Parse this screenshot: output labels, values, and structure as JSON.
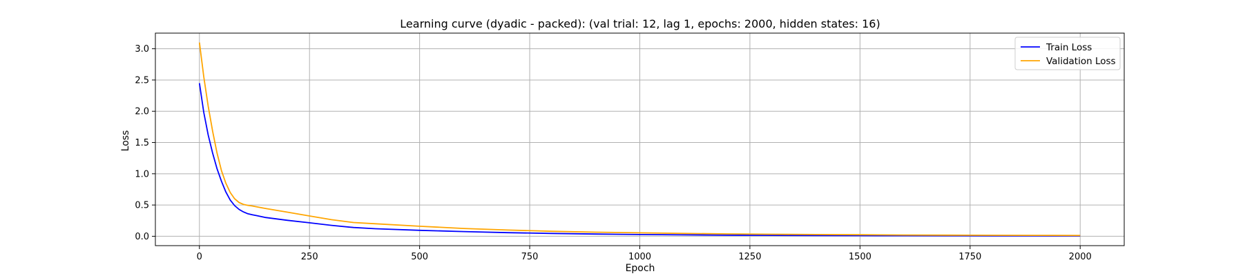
{
  "chart_data": {
    "type": "line",
    "title": "Learning curve (dyadic - packed): (val trial: 12, lag 1, epochs: 2000, hidden states: 16)",
    "xlabel": "Epoch",
    "ylabel": "Loss",
    "xlim": [
      -100,
      2100
    ],
    "ylim": [
      -0.15,
      3.25
    ],
    "xticks": [
      0,
      250,
      500,
      750,
      1000,
      1250,
      1500,
      1750,
      2000
    ],
    "yticks": [
      0.0,
      0.5,
      1.0,
      1.5,
      2.0,
      2.5,
      3.0
    ],
    "xtick_labels": [
      "0",
      "250",
      "500",
      "750",
      "1000",
      "1250",
      "1500",
      "1750",
      "2000"
    ],
    "ytick_labels": [
      "0.0",
      "0.5",
      "1.0",
      "1.5",
      "2.0",
      "2.5",
      "3.0"
    ],
    "grid": true,
    "legend_position": "top-right",
    "series": [
      {
        "name": "Train Loss",
        "color": "#0000ff",
        "x": [
          0,
          10,
          20,
          30,
          40,
          50,
          60,
          70,
          80,
          90,
          100,
          110,
          120,
          130,
          150,
          200,
          250,
          300,
          350,
          400,
          500,
          600,
          700,
          800,
          900,
          1000,
          1100,
          1200,
          1300,
          1400,
          1500,
          1600,
          1700,
          1800,
          1900,
          2000
        ],
        "y": [
          2.45,
          1.98,
          1.62,
          1.33,
          1.08,
          0.88,
          0.71,
          0.58,
          0.49,
          0.43,
          0.39,
          0.36,
          0.345,
          0.33,
          0.3,
          0.255,
          0.215,
          0.175,
          0.14,
          0.12,
          0.095,
          0.075,
          0.058,
          0.045,
          0.035,
          0.028,
          0.022,
          0.018,
          0.015,
          0.012,
          0.01,
          0.009,
          0.008,
          0.007,
          0.006,
          0.005
        ]
      },
      {
        "name": "Validation Loss",
        "color": "#ffa500",
        "x": [
          0,
          10,
          20,
          30,
          40,
          50,
          60,
          70,
          80,
          90,
          100,
          110,
          120,
          130,
          150,
          200,
          250,
          300,
          350,
          400,
          500,
          600,
          700,
          800,
          900,
          1000,
          1100,
          1200,
          1300,
          1400,
          1500,
          1600,
          1700,
          1800,
          1900,
          2000
        ],
        "y": [
          3.1,
          2.55,
          2.08,
          1.68,
          1.33,
          1.05,
          0.85,
          0.7,
          0.6,
          0.54,
          0.51,
          0.495,
          0.485,
          0.47,
          0.445,
          0.385,
          0.325,
          0.265,
          0.22,
          0.2,
          0.16,
          0.125,
          0.1,
          0.08,
          0.065,
          0.055,
          0.045,
          0.038,
          0.032,
          0.028,
          0.024,
          0.02,
          0.018,
          0.016,
          0.014,
          0.012
        ]
      }
    ]
  }
}
